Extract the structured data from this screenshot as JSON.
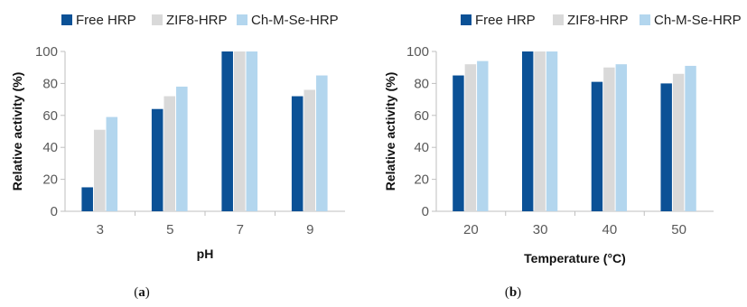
{
  "panels": [
    {
      "caption": "a",
      "chart_data": {
        "type": "bar",
        "categories": [
          "3",
          "5",
          "7",
          "9"
        ],
        "series": [
          {
            "name": "Free HRP",
            "values": [
              15,
              64,
              100,
              72
            ]
          },
          {
            "name": "ZIF8-HRP",
            "values": [
              51,
              72,
              100,
              76
            ]
          },
          {
            "name": "Ch-M-Se-HRP",
            "values": [
              59,
              78,
              100,
              85
            ]
          }
        ],
        "xlabel": "pH",
        "ylabel": "Relative activity (%)",
        "ylim": [
          0,
          100
        ],
        "yticks": [
          0,
          20,
          40,
          60,
          80,
          100
        ],
        "grid": false,
        "legend": "top"
      }
    },
    {
      "caption": "b",
      "chart_data": {
        "type": "bar",
        "categories": [
          "20",
          "30",
          "40",
          "50"
        ],
        "series": [
          {
            "name": "Free HRP",
            "values": [
              85,
              100,
              81,
              80
            ]
          },
          {
            "name": "ZIF8-HRP",
            "values": [
              92,
              100,
              90,
              86
            ]
          },
          {
            "name": "Ch-M-Se-HRP",
            "values": [
              94,
              100,
              92,
              91
            ]
          }
        ],
        "xlabel": "Temperature (°C)",
        "ylabel": "Relative activity (%)",
        "ylim": [
          0,
          100
        ],
        "yticks": [
          0,
          20,
          40,
          60,
          80,
          100
        ],
        "grid": false,
        "legend": "top"
      }
    }
  ],
  "colors": {
    "series": [
      "#0b5196",
      "#d9d9d9",
      "#b3d6ee"
    ],
    "axis": "#bfbfbf",
    "text": "#595959"
  }
}
